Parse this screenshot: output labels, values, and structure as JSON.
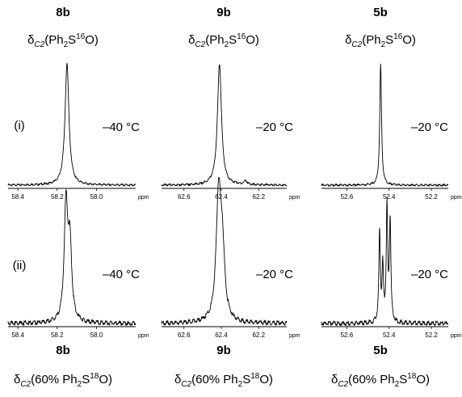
{
  "figure": {
    "columns": [
      {
        "compound": "8b",
        "top_label": {
          "prefix": "δ",
          "sub": "C2",
          "main": "(Ph",
          "sub2": "2",
          "mid": "S",
          "sup": "16",
          "tail": "O)"
        },
        "bottom_label": {
          "prefix": "δ",
          "sub": "C2",
          "main": "(60% Ph",
          "sub2": "2",
          "mid": "S",
          "sup": "18",
          "tail": "O)"
        }
      },
      {
        "compound": "9b",
        "top_label": {
          "prefix": "δ",
          "sub": "C2",
          "main": "(Ph",
          "sub2": "2",
          "mid": "S",
          "sup": "16",
          "tail": "O)"
        },
        "bottom_label": {
          "prefix": "δ",
          "sub": "C2",
          "main": "(60% Ph",
          "sub2": "2",
          "mid": "S",
          "sup": "18",
          "tail": "O)"
        }
      },
      {
        "compound": "5b",
        "top_label": {
          "prefix": "δ",
          "sub": "C2",
          "main": "(Ph",
          "sub2": "2",
          "mid": "S",
          "sup": "16",
          "tail": "O)"
        },
        "bottom_label": {
          "prefix": "δ",
          "sub": "C2",
          "main": "(60% Ph",
          "sub2": "2",
          "mid": "S",
          "sup": "18",
          "tail": "O)"
        }
      }
    ],
    "row_labels": [
      "(i)",
      "(ii)"
    ]
  },
  "chart_data": [
    {
      "type": "line",
      "panel": "8b-i",
      "compound": "8b",
      "row": "(i)",
      "temperature": "–40 °C",
      "x_unit": "ppm",
      "xlim": [
        58.45,
        57.8
      ],
      "xticks": [
        58.4,
        58.2,
        58.0
      ],
      "xtick_labels": [
        "58.4",
        "58.2",
        "58.0"
      ],
      "peaks": [
        {
          "shift": 58.15,
          "rel_height": 1.0,
          "width": 0.012
        }
      ]
    },
    {
      "type": "line",
      "panel": "9b-i",
      "compound": "9b",
      "row": "(i)",
      "temperature": "–20 °C",
      "x_unit": "ppm",
      "xlim": [
        62.72,
        62.05
      ],
      "xticks": [
        62.6,
        62.4,
        62.2
      ],
      "xtick_labels": [
        "62.6",
        "62.4",
        "62.2"
      ],
      "peaks": [
        {
          "shift": 62.41,
          "rel_height": 1.0,
          "width": 0.013
        },
        {
          "shift": 62.27,
          "rel_height": 0.03,
          "width": 0.01
        }
      ]
    },
    {
      "type": "line",
      "panel": "5b-i",
      "compound": "5b",
      "row": "(i)",
      "temperature": "–20 °C",
      "x_unit": "ppm",
      "xlim": [
        52.72,
        52.12
      ],
      "xticks": [
        52.6,
        52.4,
        52.2
      ],
      "xtick_labels": [
        "52.6",
        "52.4",
        "52.2"
      ],
      "peaks": [
        {
          "shift": 52.44,
          "rel_height": 1.0,
          "width": 0.005
        }
      ]
    },
    {
      "type": "line",
      "panel": "8b-ii",
      "compound": "8b",
      "row": "(ii)",
      "temperature": "–40 °C",
      "x_unit": "ppm",
      "xlim": [
        58.45,
        57.8
      ],
      "xticks": [
        58.4,
        58.2,
        58.0
      ],
      "xtick_labels": [
        "58.4",
        "58.2",
        "58.0"
      ],
      "peaks": [
        {
          "shift": 58.155,
          "rel_height": 0.95,
          "width": 0.011
        },
        {
          "shift": 58.135,
          "rel_height": 0.6,
          "width": 0.011
        }
      ]
    },
    {
      "type": "line",
      "panel": "9b-ii",
      "compound": "9b",
      "row": "(ii)",
      "temperature": "–20 °C",
      "x_unit": "ppm",
      "xlim": [
        62.72,
        62.05
      ],
      "xticks": [
        62.6,
        62.4,
        62.2
      ],
      "xtick_labels": [
        "62.6",
        "62.4",
        "62.2"
      ],
      "peaks": [
        {
          "shift": 62.415,
          "rel_height": 1.0,
          "width": 0.015
        },
        {
          "shift": 62.395,
          "rel_height": 0.55,
          "width": 0.015
        }
      ]
    },
    {
      "type": "line",
      "panel": "5b-ii",
      "compound": "5b",
      "row": "(ii)",
      "temperature": "–20 °C",
      "x_unit": "ppm",
      "xlim": [
        52.72,
        52.12
      ],
      "xticks": [
        52.6,
        52.4,
        52.2
      ],
      "xtick_labels": [
        "52.6",
        "52.4",
        "52.2"
      ],
      "peaks": [
        {
          "shift": 52.445,
          "rel_height": 0.75,
          "width": 0.004
        },
        {
          "shift": 52.41,
          "rel_height": 0.95,
          "width": 0.004
        },
        {
          "shift": 52.395,
          "rel_height": 0.85,
          "width": 0.004
        },
        {
          "shift": 52.43,
          "rel_height": 0.45,
          "width": 0.004
        }
      ]
    }
  ]
}
